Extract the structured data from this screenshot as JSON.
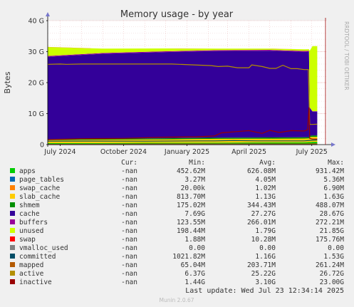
{
  "side_label": "RRDTOOL / TOBI OETIKER",
  "footer": {
    "last_update": "Last update: Wed Jul 23 12:34:14 2025",
    "version": "Munin 2.0.67"
  },
  "legend_headers": {
    "cur": "Cur:",
    "min": "Min:",
    "avg": "Avg:",
    "max": "Max:"
  },
  "legend": [
    {
      "name": "apps",
      "color": "#00cc00",
      "cur": "-nan",
      "min": "452.62M",
      "avg": "626.08M",
      "max": "931.42M"
    },
    {
      "name": "page_tables",
      "color": "#0066b3",
      "cur": "-nan",
      "min": "3.27M",
      "avg": "4.05M",
      "max": "5.36M"
    },
    {
      "name": "swap_cache",
      "color": "#ff8000",
      "cur": "-nan",
      "min": "20.00k",
      "avg": "1.02M",
      "max": "6.90M"
    },
    {
      "name": "slab_cache",
      "color": "#ffcc00",
      "cur": "-nan",
      "min": "813.70M",
      "avg": "1.13G",
      "max": "1.63G"
    },
    {
      "name": "shmem",
      "color": "#008f00",
      "cur": "-nan",
      "min": "175.02M",
      "avg": "344.43M",
      "max": "488.07M"
    },
    {
      "name": "cache",
      "color": "#330099",
      "cur": "-nan",
      "min": "7.69G",
      "avg": "27.27G",
      "max": "28.67G"
    },
    {
      "name": "buffers",
      "color": "#990099",
      "cur": "-nan",
      "min": "123.55M",
      "avg": "266.01M",
      "max": "272.21M"
    },
    {
      "name": "unused",
      "color": "#ccff00",
      "cur": "-nan",
      "min": "198.44M",
      "avg": "1.79G",
      "max": "21.85G"
    },
    {
      "name": "swap",
      "color": "#ff0000",
      "cur": "-nan",
      "min": "1.88M",
      "avg": "10.28M",
      "max": "175.76M"
    },
    {
      "name": "vmalloc_used",
      "color": "#808080",
      "cur": "-nan",
      "min": "0.00",
      "avg": "0.00",
      "max": "0.00"
    },
    {
      "name": "committed",
      "color": "#004d66",
      "cur": "-nan",
      "min": "1021.82M",
      "avg": "1.16G",
      "max": "1.53G"
    },
    {
      "name": "mapped",
      "color": "#b35a00",
      "cur": "-nan",
      "min": "65.04M",
      "avg": "203.71M",
      "max": "261.24M"
    },
    {
      "name": "active",
      "color": "#b38f00",
      "cur": "-nan",
      "min": "6.37G",
      "avg": "25.22G",
      "max": "26.72G"
    },
    {
      "name": "inactive",
      "color": "#990000",
      "cur": "-nan",
      "min": "1.44G",
      "avg": "3.10G",
      "max": "23.00G"
    }
  ],
  "chart_data": {
    "type": "area",
    "title": "Memory usage - by year",
    "ylabel": "Bytes",
    "xlabel": "",
    "ylim": [
      0,
      40
    ],
    "y_unit": "G",
    "y_ticks": [
      0,
      10,
      20,
      30,
      40
    ],
    "y_tick_labels": [
      "0",
      "10 G",
      "20 G",
      "30 G",
      "40 G"
    ],
    "x_range": [
      "2024-06-13",
      "2025-07-23"
    ],
    "x_ticks": [
      "2024-07-01",
      "2024-10-01",
      "2025-01-01",
      "2025-04-01",
      "2025-07-01"
    ],
    "x_tick_labels": [
      "July 2024",
      "October 2024",
      "January 2025",
      "April 2025",
      "July 2025"
    ],
    "grid": true,
    "stack_order": [
      "apps",
      "page_tables",
      "swap_cache",
      "slab_cache",
      "shmem",
      "cache",
      "buffers",
      "unused",
      "swap"
    ],
    "stacked_x": [
      "2024-06-13",
      "2024-09-01",
      "2024-12-01",
      "2025-02-15",
      "2025-05-01",
      "2025-06-20",
      "2025-06-27",
      "2025-06-28",
      "2025-07-02",
      "2025-07-09"
    ],
    "stacked_series": [
      {
        "name": "apps",
        "values": [
          0.45,
          0.5,
          0.6,
          0.65,
          0.7,
          0.75,
          0.8,
          0.8,
          0.9,
          0.9
        ]
      },
      {
        "name": "page_tables",
        "values": [
          0.003,
          0.004,
          0.004,
          0.004,
          0.004,
          0.005,
          0.005,
          0.005,
          0.005,
          0.005
        ]
      },
      {
        "name": "swap_cache",
        "values": [
          0.001,
          0.001,
          0.001,
          0.001,
          0.001,
          0.001,
          0.001,
          0.001,
          0.007,
          0.007
        ]
      },
      {
        "name": "slab_cache",
        "values": [
          1.0,
          1.1,
          1.1,
          1.2,
          1.2,
          1.2,
          1.2,
          1.6,
          1.6,
          1.6
        ]
      },
      {
        "name": "shmem",
        "values": [
          0.2,
          0.3,
          0.35,
          0.35,
          0.4,
          0.4,
          0.4,
          0.45,
          0.45,
          0.45
        ]
      },
      {
        "name": "cache",
        "values": [
          26.7,
          27.4,
          27.8,
          28.0,
          28.0,
          27.6,
          27.6,
          9.0,
          7.7,
          7.7
        ]
      },
      {
        "name": "buffers",
        "values": [
          0.25,
          0.26,
          0.27,
          0.27,
          0.27,
          0.27,
          0.27,
          0.2,
          0.13,
          0.13
        ]
      },
      {
        "name": "unused",
        "values": [
          2.9,
          1.4,
          0.9,
          0.5,
          0.4,
          0.5,
          0.5,
          18.2,
          21.0,
          21.0
        ]
      },
      {
        "name": "swap",
        "values": [
          0.002,
          0.003,
          0.003,
          0.003,
          0.003,
          0.003,
          0.003,
          0.003,
          0.002,
          0.002
        ]
      }
    ],
    "line_series": [
      {
        "name": "committed",
        "x": [
          "2024-06-13",
          "2024-08-15",
          "2024-11-01",
          "2025-01-15",
          "2025-02-10",
          "2025-03-10",
          "2025-04-15",
          "2025-05-15",
          "2025-06-20",
          "2025-07-01",
          "2025-07-09"
        ],
        "values": [
          1.1,
          1.15,
          1.1,
          1.2,
          1.2,
          1.3,
          1.2,
          1.2,
          1.2,
          1.4,
          1.5
        ]
      },
      {
        "name": "mapped",
        "x": [
          "2024-06-13",
          "2024-12-01",
          "2025-06-20",
          "2025-07-09"
        ],
        "values": [
          0.1,
          0.2,
          0.2,
          0.26
        ]
      },
      {
        "name": "active",
        "x": [
          "2024-06-13",
          "2024-07-01",
          "2024-07-10",
          "2024-08-01",
          "2024-11-01",
          "2024-12-10",
          "2025-02-05",
          "2025-02-15",
          "2025-03-01",
          "2025-03-15",
          "2025-04-01",
          "2025-04-05",
          "2025-04-20",
          "2025-05-01",
          "2025-05-10",
          "2025-05-20",
          "2025-06-01",
          "2025-06-10",
          "2025-06-20",
          "2025-06-26",
          "2025-06-28",
          "2025-07-02",
          "2025-07-09"
        ],
        "values": [
          25.9,
          26.0,
          25.9,
          26.0,
          26.0,
          26.0,
          25.5,
          25.2,
          25.3,
          24.8,
          24.8,
          25.7,
          25.2,
          24.6,
          24.6,
          25.6,
          24.5,
          24.5,
          24.2,
          24.2,
          6.5,
          6.5,
          6.6
        ]
      },
      {
        "name": "inactive",
        "x": [
          "2024-06-13",
          "2024-08-01",
          "2024-10-01",
          "2024-12-01",
          "2025-01-15",
          "2025-02-10",
          "2025-02-20",
          "2025-03-15",
          "2025-04-01",
          "2025-04-20",
          "2025-05-01",
          "2025-05-15",
          "2025-06-01",
          "2025-06-20",
          "2025-06-25",
          "2025-06-27",
          "2025-06-28",
          "2025-07-02",
          "2025-07-09"
        ],
        "values": [
          1.6,
          1.9,
          2.0,
          2.4,
          2.5,
          2.8,
          3.8,
          4.2,
          4.5,
          3.6,
          4.6,
          3.9,
          4.5,
          4.4,
          4.8,
          12.0,
          2.0,
          1.8,
          1.8
        ]
      },
      {
        "name": "vmalloc_used",
        "x": [
          "2024-06-13",
          "2025-07-09"
        ],
        "values": [
          0,
          0
        ]
      }
    ]
  }
}
